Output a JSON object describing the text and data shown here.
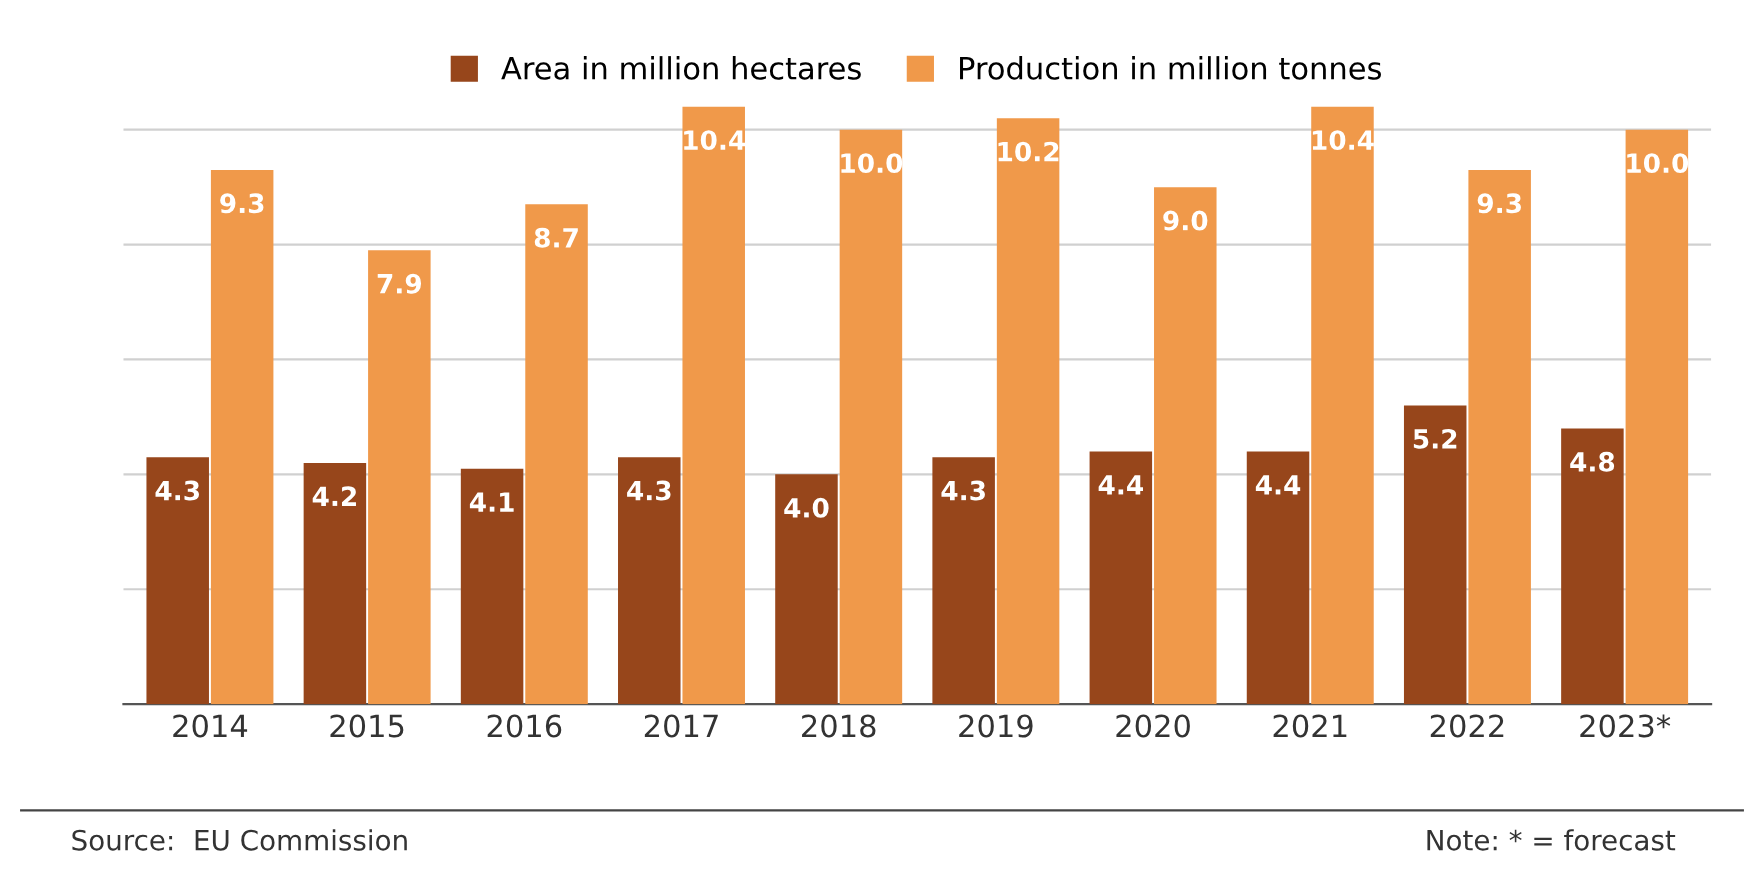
{
  "chart_data": {
    "type": "bar",
    "categories": [
      "2014",
      "2015",
      "2016",
      "2017",
      "2018",
      "2019",
      "2020",
      "2021",
      "2022",
      "2023*"
    ],
    "series": [
      {
        "name": "Area in million hectares",
        "color": "#97461b",
        "values": [
          4.3,
          4.2,
          4.1,
          4.3,
          4.0,
          4.3,
          4.4,
          4.4,
          5.2,
          4.8
        ],
        "value_labels": [
          "4.3",
          "4.2",
          "4.1",
          "4.3",
          "4.0",
          "4.3",
          "4.4",
          "4.4",
          "5.2",
          "4.8"
        ]
      },
      {
        "name": "Production in million tonnes",
        "color": "#f0994a",
        "values": [
          9.3,
          7.9,
          8.7,
          10.4,
          10.0,
          10.2,
          9.0,
          10.4,
          9.3,
          10.0
        ],
        "value_labels": [
          "9.3",
          "7.9",
          "8.7",
          "10.4",
          "10.0",
          "10.2",
          "9.0",
          "10.4",
          "9.3",
          "10.0"
        ]
      }
    ],
    "ylim": [
      0,
      10.5
    ],
    "yticks": [
      {
        "value": 0,
        "label": null
      },
      {
        "value": 2,
        "label": null
      },
      {
        "value": 4,
        "label": null
      },
      {
        "value": 6,
        "label": null
      },
      {
        "value": 8,
        "label": null
      },
      {
        "value": 10,
        "label": null
      }
    ],
    "grid": "y",
    "legend": "top",
    "tick_labels": "x",
    "annotations": [
      "Source:  EU Commission",
      "Note: * = forecast"
    ]
  }
}
